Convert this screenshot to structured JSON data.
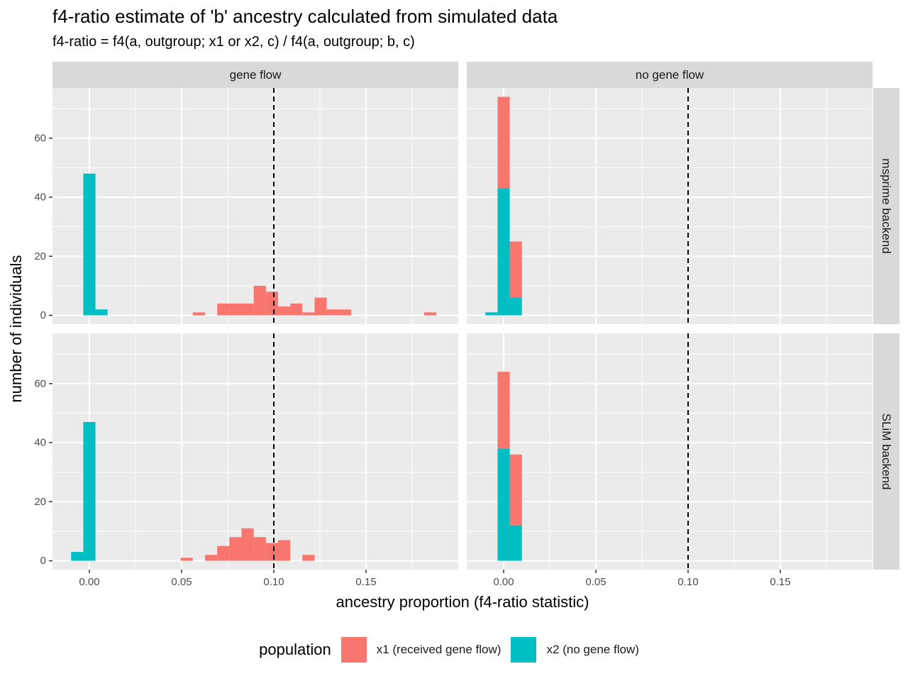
{
  "header": {
    "title": "f4-ratio estimate of 'b' ancestry calculated from simulated data",
    "subtitle": "f4-ratio = f4(a, outgroup; x1 or x2, c) / f4(a, outgroup; b, c)"
  },
  "legend": {
    "title": "population",
    "items": [
      {
        "label": "x1 (received gene flow)",
        "color": "#F8766D"
      },
      {
        "label": "x2 (no gene flow)",
        "color": "#00BFC4"
      }
    ]
  },
  "chart_data": {
    "type": "bar",
    "subtype": "stacked histogram, faceted grid",
    "xlabel": "ancestry proportion (f4-ratio statistic)",
    "ylabel": "number of individuals",
    "xlim": [
      -0.02,
      0.2
    ],
    "ylim": [
      -3,
      77
    ],
    "xticks": [
      0.0,
      0.05,
      0.1,
      0.15
    ],
    "xtick_labels": [
      "0.00",
      "0.05",
      "0.10",
      "0.15"
    ],
    "yticks": [
      0,
      20,
      40,
      60
    ],
    "ytick_labels": [
      "0",
      "20",
      "40",
      "60"
    ],
    "bin_width": 0.0066,
    "reference_line": {
      "x": 0.1,
      "style": "dashed"
    },
    "grid": true,
    "legend_position": "bottom",
    "facet_columns": [
      "gene flow",
      "no gene flow"
    ],
    "facet_rows": [
      "msprime backend",
      "SLiM backend"
    ],
    "series": [
      {
        "name": "x1 (received gene flow)",
        "color": "#F8766D"
      },
      {
        "name": "x2 (no gene flow)",
        "color": "#00BFC4"
      }
    ],
    "panels": [
      {
        "column": "gene flow",
        "row": "msprime backend",
        "bins": [
          {
            "x": 0.0,
            "x1": 0,
            "x2": 48
          },
          {
            "x": 0.0066,
            "x1": 0,
            "x2": 2
          },
          {
            "x": 0.0594,
            "x1": 1,
            "x2": 0
          },
          {
            "x": 0.0726,
            "x1": 4,
            "x2": 0
          },
          {
            "x": 0.0792,
            "x1": 4,
            "x2": 0
          },
          {
            "x": 0.0858,
            "x1": 4,
            "x2": 0
          },
          {
            "x": 0.0924,
            "x1": 10,
            "x2": 0
          },
          {
            "x": 0.099,
            "x1": 8,
            "x2": 0
          },
          {
            "x": 0.1056,
            "x1": 3,
            "x2": 0
          },
          {
            "x": 0.1122,
            "x1": 4,
            "x2": 0
          },
          {
            "x": 0.1188,
            "x1": 1,
            "x2": 0
          },
          {
            "x": 0.1254,
            "x1": 6,
            "x2": 0
          },
          {
            "x": 0.132,
            "x1": 2,
            "x2": 0
          },
          {
            "x": 0.1386,
            "x1": 2,
            "x2": 0
          },
          {
            "x": 0.1848,
            "x1": 1,
            "x2": 0
          }
        ]
      },
      {
        "column": "no gene flow",
        "row": "msprime backend",
        "bins": [
          {
            "x": -0.0066,
            "x1": 0,
            "x2": 1
          },
          {
            "x": 0.0,
            "x1": 31,
            "x2": 43
          },
          {
            "x": 0.0066,
            "x1": 19,
            "x2": 6
          }
        ]
      },
      {
        "column": "gene flow",
        "row": "SLiM backend",
        "bins": [
          {
            "x": -0.0066,
            "x1": 0,
            "x2": 3
          },
          {
            "x": 0.0,
            "x1": 0,
            "x2": 47
          },
          {
            "x": 0.0528,
            "x1": 1,
            "x2": 0
          },
          {
            "x": 0.066,
            "x1": 2,
            "x2": 0
          },
          {
            "x": 0.0726,
            "x1": 5,
            "x2": 0
          },
          {
            "x": 0.0792,
            "x1": 8,
            "x2": 0
          },
          {
            "x": 0.0858,
            "x1": 11,
            "x2": 0
          },
          {
            "x": 0.0924,
            "x1": 8,
            "x2": 0
          },
          {
            "x": 0.099,
            "x1": 6,
            "x2": 0
          },
          {
            "x": 0.1056,
            "x1": 7,
            "x2": 0
          },
          {
            "x": 0.1188,
            "x1": 2,
            "x2": 0
          }
        ]
      },
      {
        "column": "no gene flow",
        "row": "SLiM backend",
        "bins": [
          {
            "x": 0.0,
            "x1": 26,
            "x2": 38
          },
          {
            "x": 0.0066,
            "x1": 24,
            "x2": 12
          }
        ]
      }
    ]
  }
}
